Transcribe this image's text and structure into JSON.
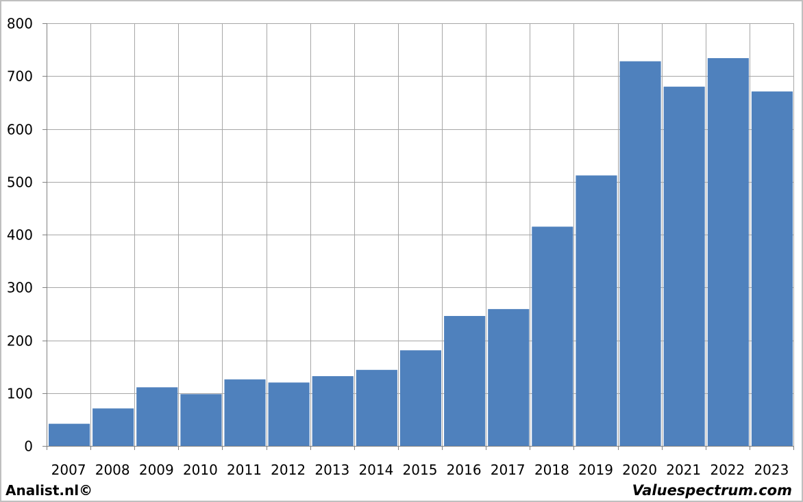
{
  "chart_data": {
    "type": "bar",
    "categories": [
      "2007",
      "2008",
      "2009",
      "2010",
      "2011",
      "2012",
      "2013",
      "2014",
      "2015",
      "2016",
      "2017",
      "2018",
      "2019",
      "2020",
      "2021",
      "2022",
      "2023"
    ],
    "values": [
      42,
      71,
      111,
      98,
      126,
      120,
      132,
      144,
      181,
      246,
      259,
      415,
      512,
      728,
      680,
      734,
      671
    ],
    "ylim": [
      0,
      800
    ],
    "yticks": [
      0,
      100,
      200,
      300,
      400,
      500,
      600,
      700,
      800
    ],
    "grid": true,
    "bar_color": "#4f81bd",
    "grid_color": "#a6a6a6"
  },
  "footer": {
    "left_text": "Analist.nl©",
    "right_text": "Valuespectrum.com"
  }
}
